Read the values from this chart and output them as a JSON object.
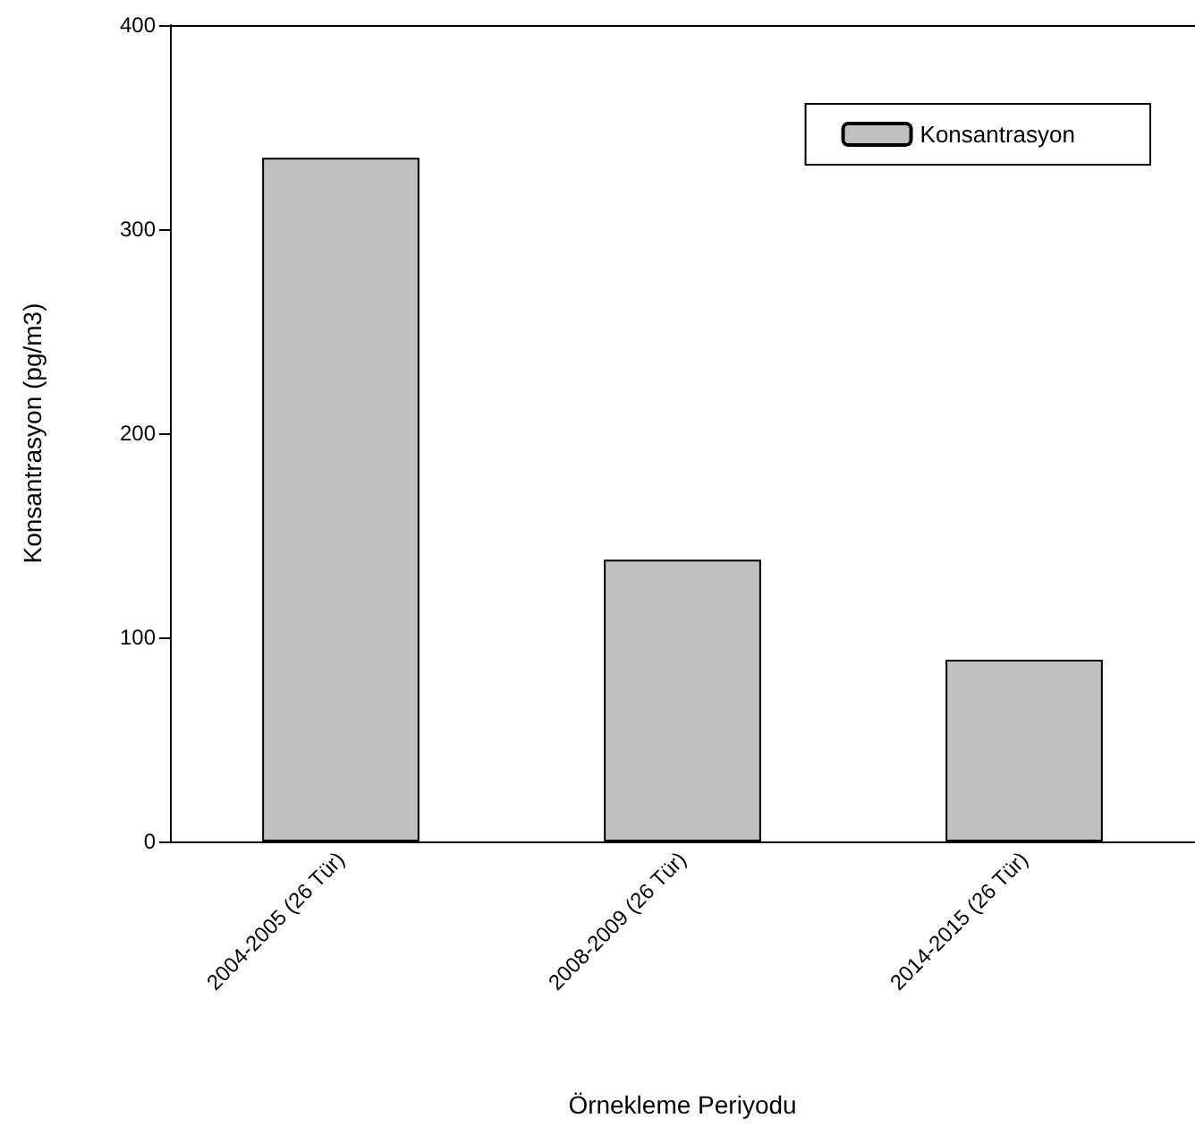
{
  "chart_data": {
    "type": "bar",
    "xlabel": "Örnekleme Periyodu",
    "ylabel": "Konsantrasyon (pg/m3)",
    "categories": [
      "2004-2005 (26 Tür)",
      "2008-2009 (26 Tür)",
      "2014-2015 (26 Tür)"
    ],
    "series": [
      {
        "name": "Konsantrasyon",
        "color": "#c0c0c0",
        "values": [
          335,
          138,
          89
        ]
      }
    ],
    "ylim": [
      0,
      400
    ],
    "yticks": [
      0,
      100,
      200,
      300,
      400
    ],
    "grid": false,
    "legend": "top right"
  }
}
